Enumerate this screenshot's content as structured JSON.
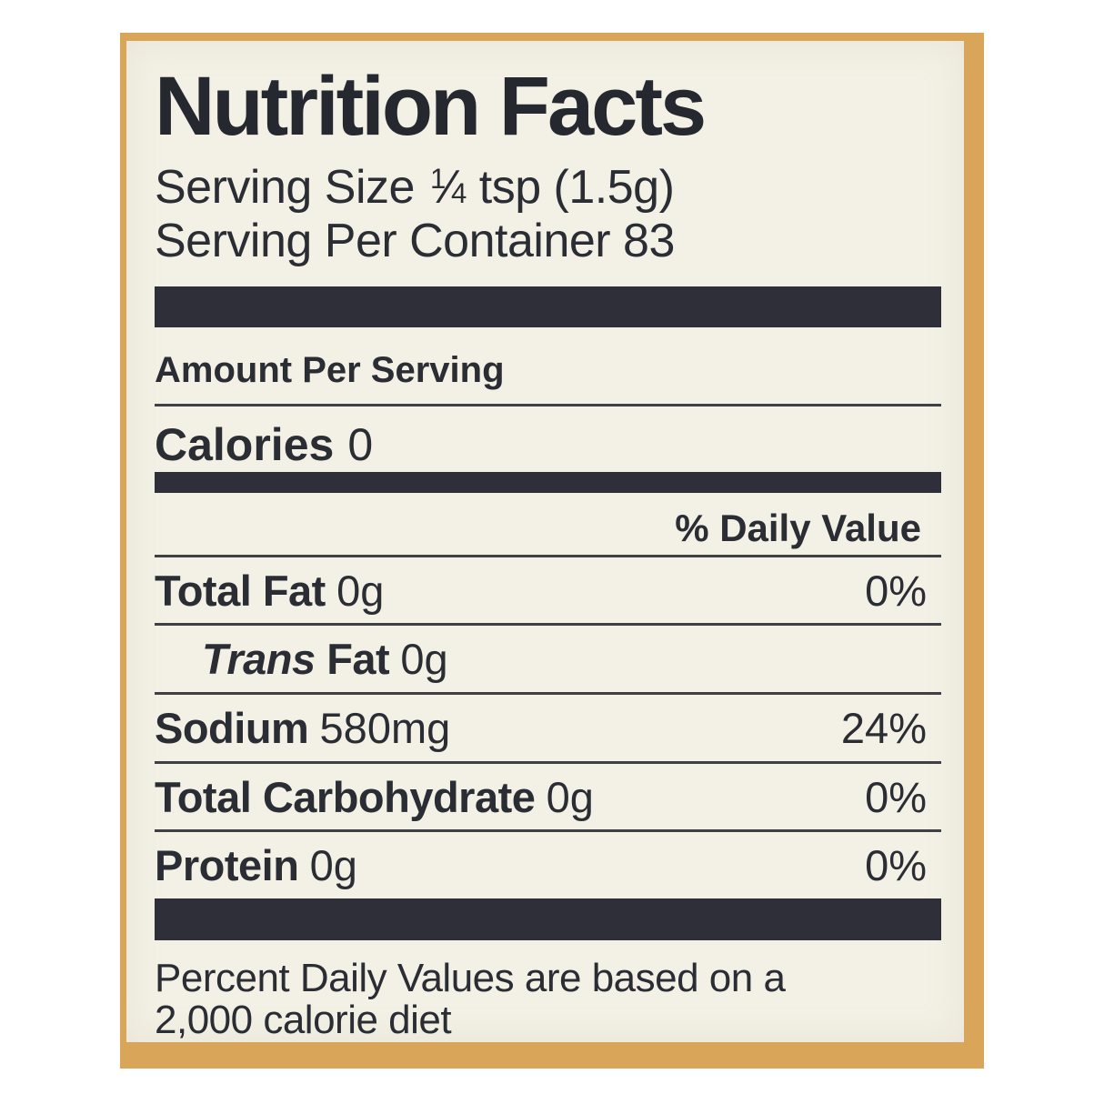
{
  "colors": {
    "page_background": "#ffffff",
    "label_background": "#f3f0e5",
    "border_tan": "#d9a559",
    "ink": "#2b2d34",
    "bar": "#2e2f38"
  },
  "label": {
    "title": "Nutrition Facts",
    "serving_size": {
      "prefix": "Serving Size ",
      "fraction_numerator": "1",
      "fraction_slash": "⁄",
      "fraction_denominator": "4",
      "suffix": " tsp (1.5g)"
    },
    "servings_per_container": "Serving Per Container 83",
    "amount_per_serving": "Amount Per Serving",
    "calories": {
      "label": "Calories",
      "value": "0"
    },
    "daily_value_header": "% Daily Value",
    "rows": [
      {
        "name": "Total Fat",
        "value": "0g",
        "percent": "0%"
      },
      {
        "name_italic": "Trans",
        "name": " Fat",
        "value": "0g"
      },
      {
        "name": "Sodium",
        "value": "580mg",
        "percent": "24%"
      },
      {
        "name": "Total Carbohydrate",
        "value": "0g",
        "percent": "0%"
      },
      {
        "name": "Protein",
        "value": "0g",
        "percent": "0%"
      }
    ],
    "footnote_lines": [
      "Percent Daily Values are based on a",
      "2,000 calorie diet"
    ]
  }
}
